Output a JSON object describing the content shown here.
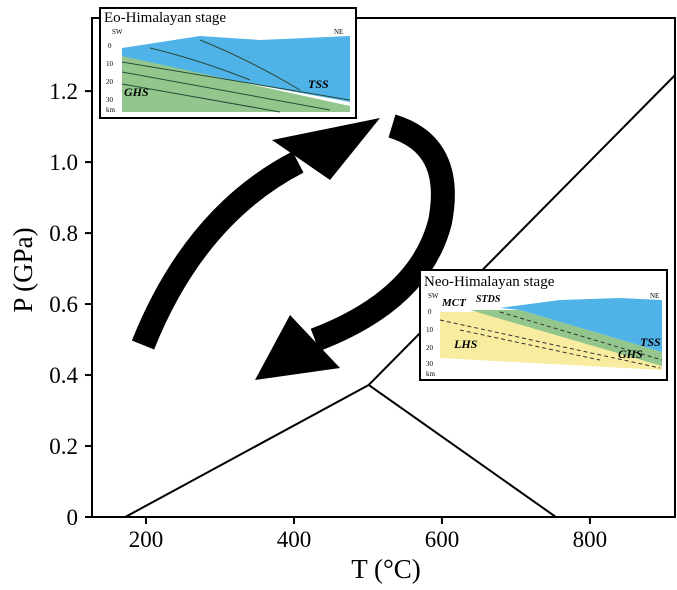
{
  "chart_data": {
    "type": "line",
    "x_label": "T (°C)",
    "y_label": "P (GPa)",
    "xlim": [
      127,
      915
    ],
    "ylim": [
      0,
      1.406
    ],
    "xticks": [
      200,
      400,
      600,
      800
    ],
    "yticks": [
      0,
      0.2,
      0.4,
      0.6,
      0.8,
      {
        "value": 1,
        "label": "1.0"
      },
      1.2
    ],
    "series": [
      {
        "color": "#000000",
        "x": [
          172,
          501
        ],
        "values": [
          0,
          0.372
        ]
      },
      {
        "color": "#000000",
        "x": [
          501,
          915
        ],
        "values": [
          0.372,
          1.245
        ]
      },
      {
        "color": "#000000",
        "x": [
          501,
          754
        ],
        "values": [
          0.372,
          0
        ]
      }
    ]
  },
  "insets": [
    {
      "title": "Eo-Himalayan stage",
      "left": "SW",
      "right": "NE",
      "depths": [
        "0",
        "10",
        "20",
        "30"
      ],
      "unit": "km",
      "units": [
        "GHS",
        "TSS"
      ]
    },
    {
      "title": "Neo-Himalayan stage",
      "left": "SW",
      "right": "NE",
      "depths": [
        "0",
        "10",
        "20",
        "30"
      ],
      "unit": "km",
      "units": [
        "MCT",
        "STDS",
        "LHS",
        "GHS",
        "TSS"
      ]
    }
  ]
}
